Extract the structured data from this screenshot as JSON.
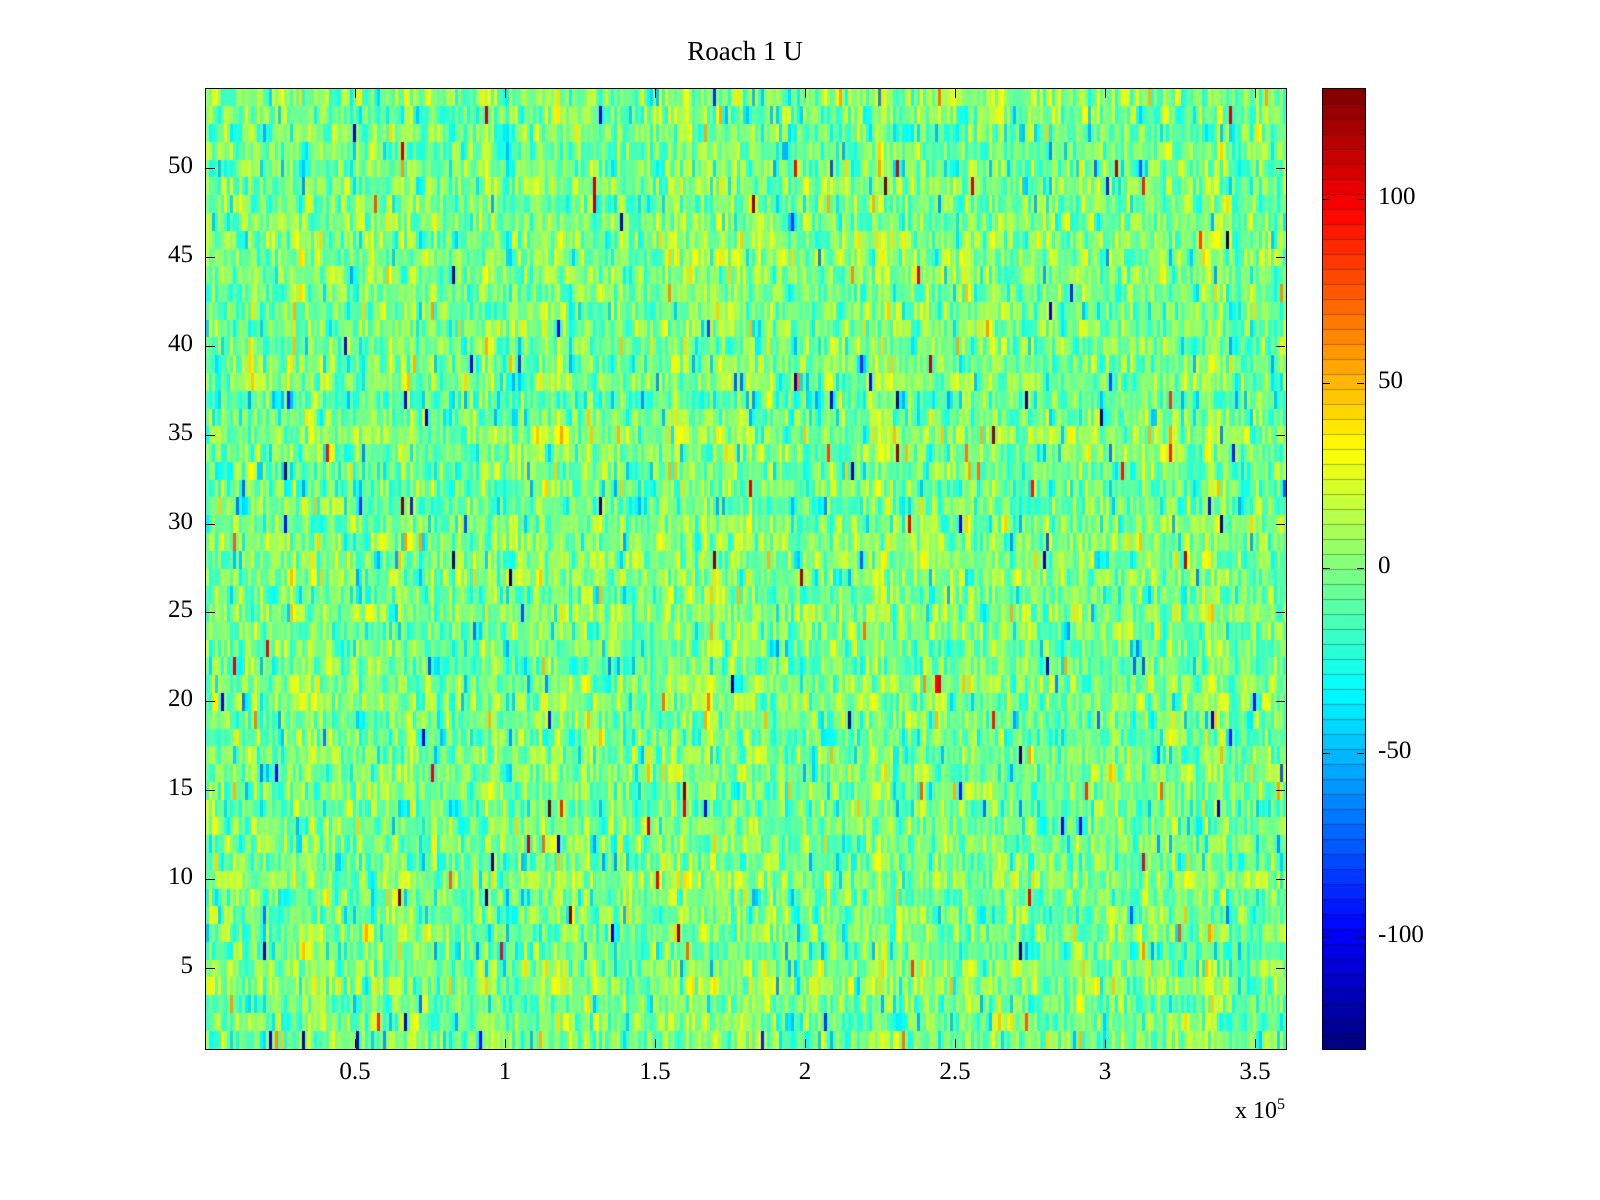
{
  "figure": {
    "background": "#ffffff",
    "axis_color": "#000000"
  },
  "chart_data": {
    "type": "heatmap",
    "title": "Roach 1 U",
    "xlabel": "",
    "ylabel": "",
    "xlim": [
      0,
      360000
    ],
    "ylim": [
      0.5,
      54.5
    ],
    "x_ticks": [
      50000,
      100000,
      150000,
      200000,
      250000,
      300000,
      350000
    ],
    "x_tick_labels": [
      "0.5",
      "1",
      "1.5",
      "2",
      "2.5",
      "3",
      "3.5"
    ],
    "x_mult_base": "x 10",
    "x_mult_exp": "5",
    "y_ticks": [
      5,
      10,
      15,
      20,
      25,
      30,
      35,
      40,
      45,
      50
    ],
    "y_tick_labels": [
      "5",
      "10",
      "15",
      "20",
      "25",
      "30",
      "35",
      "40",
      "45",
      "50"
    ],
    "rows": 54,
    "cols": 360,
    "colormap": "jet",
    "colormap_levels": 64,
    "clim": [
      -130,
      130
    ],
    "colorbar_ticks": [
      100,
      50,
      0,
      -50,
      -100
    ],
    "colorbar_tick_labels": [
      "100",
      "50",
      "0",
      "-50",
      "-100"
    ],
    "grid": false,
    "legend": "colorbar-right",
    "noise": {
      "mean": -2,
      "std": 18,
      "row_offset_std": 3,
      "col_offset_std": 7,
      "spike_prob": 0.01,
      "spike_min": 50,
      "spike_max": 120,
      "seed": 1337
    },
    "description": "Dense random-noise heatmap: 54 rows of thin vertical strips, values mostly within about +/-40 of zero (greens and teals in jet colormap) with sparse spikes toward +/-120 appearing as isolated orange, red and blue slivers."
  }
}
